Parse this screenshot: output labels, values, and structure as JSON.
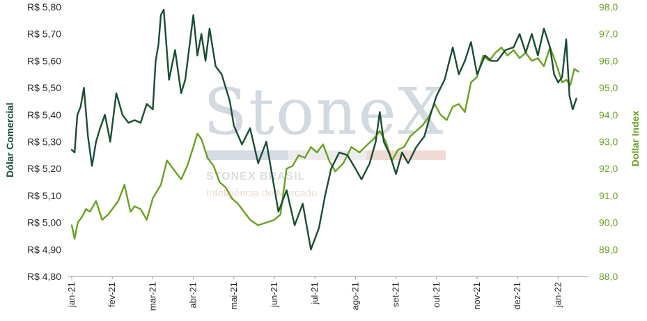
{
  "brand": {
    "watermark": "StoneX",
    "subtitle": "STONEX BRASIL",
    "tagline": "Inteligência de Mercado"
  },
  "colors": {
    "usd_brl": "#1a4d33",
    "dollar_index": "#6aa121"
  },
  "chart_data": {
    "type": "line",
    "title": "",
    "xlabel": "",
    "x_ticks": [
      "jan-21",
      "fev-21",
      "mar-21",
      "abr-21",
      "mai-21",
      "jun-21",
      "jul-21",
      "ago-21",
      "set-21",
      "out-21",
      "nov-21",
      "dez-21",
      "jan-22"
    ],
    "y_left": {
      "label": "Dólar Comercial",
      "lim": [
        4.8,
        5.8
      ],
      "ticks": [
        "R$ 5,80",
        "R$ 5,70",
        "R$ 5,60",
        "R$ 5,50",
        "R$ 5,40",
        "R$ 5,30",
        "R$ 5,20",
        "R$ 5,10",
        "R$ 5,00",
        "R$ 4,90",
        "R$ 4,80"
      ]
    },
    "y_right": {
      "label": "Dollar Index",
      "lim": [
        88.0,
        98.0
      ],
      "ticks": [
        "98,0",
        "97,0",
        "96,0",
        "95,0",
        "94,0",
        "93,0",
        "92,0",
        "91,0",
        "90,0",
        "89,0",
        "88,0"
      ]
    },
    "grid": false,
    "series": [
      {
        "name": "Dólar Comercial",
        "axis": "left",
        "month_index": [
          0,
          0.07,
          0.14,
          0.22,
          0.3,
          0.4,
          0.5,
          0.6,
          0.7,
          0.82,
          0.95,
          1.1,
          1.25,
          1.4,
          1.55,
          1.7,
          1.85,
          2.0,
          2.07,
          2.14,
          2.2,
          2.27,
          2.4,
          2.55,
          2.7,
          2.8,
          2.9,
          3.0,
          3.1,
          3.2,
          3.3,
          3.4,
          3.55,
          3.7,
          3.8,
          3.9,
          4.0,
          4.2,
          4.4,
          4.6,
          4.8,
          4.95,
          5.1,
          5.3,
          5.5,
          5.7,
          5.9,
          6.0,
          6.1,
          6.25,
          6.4,
          6.6,
          6.8,
          7.0,
          7.15,
          7.35,
          7.5,
          7.6,
          7.7,
          7.85,
          8.0,
          8.15,
          8.3,
          8.5,
          8.7,
          8.85,
          9.0,
          9.2,
          9.4,
          9.55,
          9.7,
          9.85,
          10.0,
          10.2,
          10.35,
          10.5,
          10.7,
          10.9,
          11.05,
          11.2,
          11.35,
          11.5,
          11.65,
          11.8,
          11.9,
          12.0,
          12.1,
          12.2,
          12.28,
          12.36,
          12.45
        ],
        "values": [
          5.27,
          5.26,
          5.4,
          5.43,
          5.5,
          5.32,
          5.21,
          5.3,
          5.35,
          5.4,
          5.3,
          5.48,
          5.4,
          5.37,
          5.38,
          5.37,
          5.44,
          5.42,
          5.6,
          5.66,
          5.77,
          5.79,
          5.53,
          5.64,
          5.48,
          5.53,
          5.65,
          5.77,
          5.62,
          5.7,
          5.6,
          5.72,
          5.58,
          5.55,
          5.5,
          5.45,
          5.36,
          5.29,
          5.35,
          5.22,
          5.3,
          5.17,
          5.04,
          5.12,
          4.99,
          5.07,
          4.9,
          4.94,
          4.98,
          5.1,
          5.2,
          5.26,
          5.25,
          5.2,
          5.16,
          5.22,
          5.3,
          5.41,
          5.3,
          5.25,
          5.18,
          5.26,
          5.22,
          5.28,
          5.32,
          5.4,
          5.47,
          5.53,
          5.65,
          5.55,
          5.6,
          5.67,
          5.55,
          5.62,
          5.6,
          5.6,
          5.64,
          5.65,
          5.7,
          5.63,
          5.7,
          5.62,
          5.72,
          5.65,
          5.55,
          5.52,
          5.54,
          5.68,
          5.47,
          5.42,
          5.46
        ]
      },
      {
        "name": "Dollar Index",
        "axis": "right",
        "month_index": [
          0,
          0.07,
          0.15,
          0.25,
          0.35,
          0.45,
          0.6,
          0.75,
          0.9,
          1.0,
          1.15,
          1.3,
          1.45,
          1.55,
          1.7,
          1.85,
          2.0,
          2.2,
          2.35,
          2.55,
          2.7,
          2.85,
          3.0,
          3.1,
          3.2,
          3.35,
          3.5,
          3.65,
          3.8,
          3.95,
          4.1,
          4.25,
          4.4,
          4.6,
          4.8,
          5.0,
          5.15,
          5.3,
          5.45,
          5.6,
          5.75,
          5.9,
          6.05,
          6.2,
          6.35,
          6.5,
          6.7,
          6.9,
          7.1,
          7.3,
          7.45,
          7.6,
          7.75,
          7.9,
          8.05,
          8.2,
          8.35,
          8.5,
          8.65,
          8.8,
          8.95,
          9.1,
          9.25,
          9.4,
          9.55,
          9.7,
          9.85,
          10.0,
          10.15,
          10.3,
          10.45,
          10.6,
          10.75,
          10.9,
          11.05,
          11.2,
          11.35,
          11.5,
          11.65,
          11.8,
          11.95,
          12.1,
          12.2,
          12.3,
          12.4,
          12.5
        ],
        "values": [
          89.9,
          89.4,
          90.0,
          90.2,
          90.5,
          90.4,
          90.8,
          90.1,
          90.3,
          90.5,
          90.8,
          91.4,
          90.4,
          90.6,
          90.5,
          90.1,
          90.9,
          91.4,
          92.3,
          91.9,
          91.6,
          92.1,
          92.8,
          93.3,
          93.1,
          92.4,
          92.1,
          91.5,
          91.3,
          90.9,
          90.7,
          90.4,
          90.1,
          89.9,
          90.0,
          90.1,
          90.3,
          92.0,
          92.1,
          92.5,
          92.4,
          92.8,
          92.6,
          92.9,
          92.3,
          91.9,
          92.2,
          92.8,
          92.6,
          92.9,
          93.1,
          93.4,
          93.0,
          92.3,
          92.7,
          92.8,
          93.2,
          93.4,
          93.6,
          93.9,
          94.4,
          94.0,
          93.8,
          94.3,
          94.4,
          94.1,
          95.2,
          95.4,
          96.2,
          96.0,
          96.3,
          96.5,
          96.2,
          96.4,
          96.1,
          96.3,
          96.0,
          96.1,
          95.8,
          96.5,
          95.9,
          95.2,
          95.3,
          95.1,
          95.7,
          95.6
        ]
      }
    ]
  }
}
